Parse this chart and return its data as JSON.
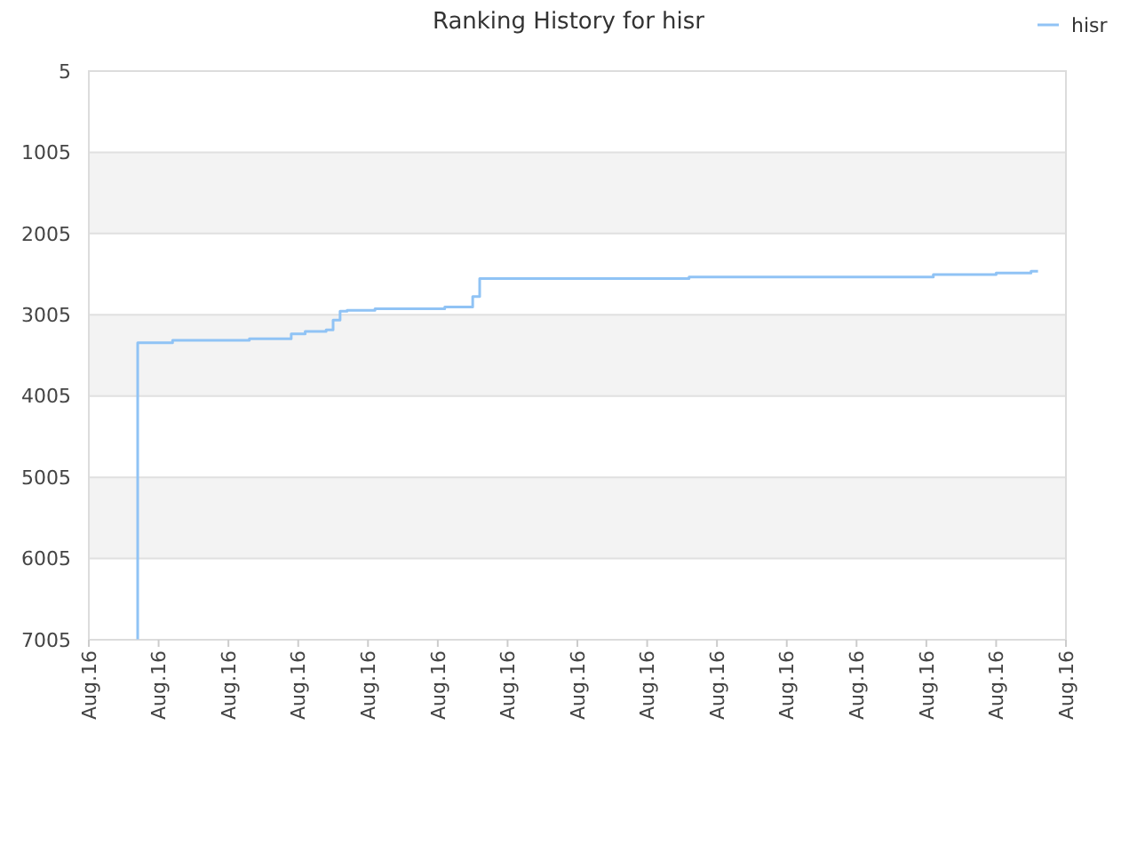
{
  "chart_data": {
    "type": "step",
    "title": "Ranking History for hisr",
    "categories": [
      "Aug.16",
      null,
      null,
      null,
      null,
      null,
      null,
      null,
      null,
      null,
      "Aug.16",
      null,
      null,
      null,
      null,
      null,
      null,
      null,
      null,
      null,
      "Aug.16",
      null,
      null,
      null,
      null,
      null,
      null,
      null,
      null,
      null,
      "Aug.16",
      null,
      null,
      null,
      null,
      null,
      null,
      null,
      null,
      null,
      "Aug.16",
      null,
      null,
      null,
      null,
      null,
      null,
      null,
      null,
      null,
      "Aug.16",
      null,
      null,
      null,
      null,
      null,
      null,
      null,
      null,
      null,
      "Aug.16",
      null,
      null,
      null,
      null,
      null,
      null,
      null,
      null,
      null,
      "Aug.16",
      null,
      null,
      null,
      null,
      null,
      null,
      null,
      null,
      null,
      "Aug.16",
      null,
      null,
      null,
      null,
      null,
      null,
      null,
      null,
      null,
      "Aug.16",
      null,
      null,
      null,
      null,
      null,
      null,
      null,
      null,
      null,
      "Aug.16",
      null,
      null,
      null,
      null,
      null,
      null,
      null,
      null,
      null,
      "Aug.16",
      null,
      null,
      null,
      null,
      null,
      null,
      null,
      null,
      null,
      "Aug.16",
      null,
      null,
      null,
      null,
      null,
      null,
      null,
      null,
      null,
      "Aug.16",
      null,
      null,
      null,
      null,
      null,
      null,
      null,
      null,
      null,
      "Aug.16"
    ],
    "series": [
      {
        "name": "hisr",
        "color": "#90c3f5",
        "values": [
          null,
          null,
          null,
          null,
          null,
          null,
          null,
          7000,
          3350,
          3350,
          3350,
          3350,
          3350,
          3320,
          3320,
          3320,
          3320,
          3320,
          3320,
          3320,
          3320,
          3320,
          3320,
          3320,
          3300,
          3300,
          3300,
          3300,
          3300,
          3300,
          3240,
          3240,
          3210,
          3210,
          3210,
          3190,
          3070,
          2960,
          2950,
          2950,
          2950,
          2950,
          2930,
          2930,
          2930,
          2930,
          2930,
          2930,
          2930,
          2930,
          2930,
          2930,
          2910,
          2910,
          2910,
          2910,
          2780,
          2560,
          2560,
          2560,
          2560,
          2560,
          2560,
          2560,
          2560,
          2560,
          2560,
          2560,
          2560,
          2560,
          2560,
          2560,
          2560,
          2560,
          2560,
          2560,
          2560,
          2560,
          2560,
          2560,
          2560,
          2560,
          2560,
          2560,
          2560,
          2560,
          2560,
          2540,
          2540,
          2540,
          2540,
          2540,
          2540,
          2540,
          2540,
          2540,
          2540,
          2540,
          2540,
          2540,
          2540,
          2540,
          2540,
          2540,
          2540,
          2540,
          2540,
          2540,
          2540,
          2540,
          2540,
          2540,
          2540,
          2540,
          2540,
          2540,
          2540,
          2540,
          2540,
          2540,
          2540,
          2540,
          2510,
          2510,
          2510,
          2510,
          2510,
          2510,
          2510,
          2510,
          2510,
          2490,
          2490,
          2490,
          2490,
          2490,
          2470,
          null,
          null,
          null,
          null
        ]
      }
    ],
    "ylim": [
      7005,
      5
    ],
    "yticks": [
      5,
      1005,
      2005,
      3005,
      4005,
      5005,
      6005,
      7005
    ],
    "grid": "y",
    "legend": "top right"
  }
}
